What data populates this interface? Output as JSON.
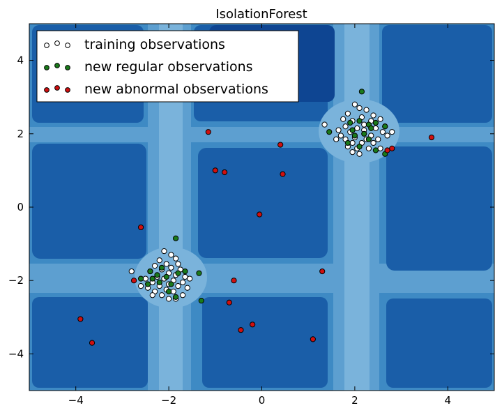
{
  "chart_data": {
    "type": "scatter",
    "title": "IsolationForest",
    "xlabel": "",
    "ylabel": "",
    "xlim": [
      -5,
      5
    ],
    "ylim": [
      -5,
      5
    ],
    "xticks": [
      -4,
      -2,
      0,
      2,
      4
    ],
    "yticks": [
      -4,
      -2,
      0,
      2,
      4
    ],
    "background": "decision-function contour (IsolationForest anomaly score)",
    "contour_colors": [
      "#08306b",
      "#1f5fa8",
      "#3a88c4",
      "#6aaed6"
    ],
    "legend": {
      "placement": "top-left",
      "entries": [
        "training observations",
        "new regular observations",
        "new abnormal observations"
      ]
    },
    "series": [
      {
        "name": "training observations",
        "color": "#ffffff",
        "points": [
          [
            2.0,
            2.8
          ],
          [
            2.1,
            2.7
          ],
          [
            2.25,
            2.65
          ],
          [
            1.85,
            2.55
          ],
          [
            2.4,
            2.5
          ],
          [
            1.75,
            2.4
          ],
          [
            2.55,
            2.4
          ],
          [
            1.95,
            2.35
          ],
          [
            2.15,
            2.45
          ],
          [
            2.35,
            2.35
          ],
          [
            1.8,
            2.2
          ],
          [
            2.65,
            2.2
          ],
          [
            1.65,
            2.1
          ],
          [
            2.05,
            2.15
          ],
          [
            2.2,
            2.1
          ],
          [
            2.45,
            2.15
          ],
          [
            1.9,
            2.05
          ],
          [
            2.6,
            2.05
          ],
          [
            1.7,
            1.95
          ],
          [
            2.35,
            1.95
          ],
          [
            2.0,
            1.9
          ],
          [
            2.8,
            2.05
          ],
          [
            1.8,
            1.85
          ],
          [
            2.25,
            1.85
          ],
          [
            2.5,
            1.85
          ],
          [
            1.95,
            1.75
          ],
          [
            2.15,
            1.75
          ],
          [
            2.4,
            1.75
          ],
          [
            1.85,
            1.65
          ],
          [
            2.05,
            1.6
          ],
          [
            2.3,
            1.6
          ],
          [
            2.55,
            1.6
          ],
          [
            1.95,
            1.5
          ],
          [
            2.1,
            1.45
          ],
          [
            1.35,
            2.25
          ],
          [
            2.7,
            1.95
          ],
          [
            2.2,
            2.25
          ],
          [
            1.6,
            1.85
          ],
          [
            -2.1,
            -1.2
          ],
          [
            -1.95,
            -1.3
          ],
          [
            -1.85,
            -1.4
          ],
          [
            -2.2,
            -1.45
          ],
          [
            -2.05,
            -1.55
          ],
          [
            -1.8,
            -1.55
          ],
          [
            -2.3,
            -1.6
          ],
          [
            -1.95,
            -1.65
          ],
          [
            -2.15,
            -1.7
          ],
          [
            -1.75,
            -1.7
          ],
          [
            -2.4,
            -1.75
          ],
          [
            -2.0,
            -1.8
          ],
          [
            -1.85,
            -1.85
          ],
          [
            -2.25,
            -1.9
          ],
          [
            -1.65,
            -1.9
          ],
          [
            -2.5,
            -1.95
          ],
          [
            -2.1,
            -1.95
          ],
          [
            -1.9,
            -2.0
          ],
          [
            -2.35,
            -2.05
          ],
          [
            -1.7,
            -2.05
          ],
          [
            -2.0,
            -2.1
          ],
          [
            -2.2,
            -2.15
          ],
          [
            -1.8,
            -2.15
          ],
          [
            -2.45,
            -2.2
          ],
          [
            -1.6,
            -2.2
          ],
          [
            -2.05,
            -2.25
          ],
          [
            -2.3,
            -2.3
          ],
          [
            -1.9,
            -2.3
          ],
          [
            -2.15,
            -2.4
          ],
          [
            -1.7,
            -2.4
          ],
          [
            -2.0,
            -2.5
          ],
          [
            -2.8,
            -1.75
          ],
          [
            -2.6,
            -2.15
          ],
          [
            -1.55,
            -1.95
          ],
          [
            -2.35,
            -2.4
          ],
          [
            -1.85,
            -2.5
          ]
        ]
      },
      {
        "name": "new regular observations",
        "color": "#1a7a1a",
        "points": [
          [
            2.15,
            3.15
          ],
          [
            1.9,
            2.3
          ],
          [
            2.1,
            2.35
          ],
          [
            2.3,
            2.25
          ],
          [
            2.45,
            2.3
          ],
          [
            1.95,
            2.1
          ],
          [
            2.2,
            2.0
          ],
          [
            2.35,
            2.15
          ],
          [
            1.45,
            2.05
          ],
          [
            2.65,
            2.2
          ],
          [
            2.0,
            1.95
          ],
          [
            2.3,
            1.85
          ],
          [
            1.85,
            1.75
          ],
          [
            2.45,
            1.55
          ],
          [
            2.65,
            1.45
          ],
          [
            2.1,
            1.65
          ],
          [
            -1.85,
            -0.85
          ],
          [
            -2.15,
            -1.65
          ],
          [
            -2.4,
            -1.75
          ],
          [
            -2.25,
            -1.85
          ],
          [
            -2.05,
            -1.9
          ],
          [
            -1.8,
            -1.8
          ],
          [
            -2.35,
            -1.95
          ],
          [
            -1.65,
            -1.75
          ],
          [
            -2.2,
            -2.05
          ],
          [
            -1.95,
            -2.1
          ],
          [
            -2.6,
            -1.95
          ],
          [
            -2.45,
            -2.1
          ],
          [
            -2.0,
            -2.3
          ],
          [
            -1.85,
            -2.45
          ],
          [
            -1.35,
            -1.8
          ],
          [
            -1.3,
            -2.55
          ]
        ]
      },
      {
        "name": "new abnormal observations",
        "color": "#d01010",
        "points": [
          [
            -1.15,
            2.05
          ],
          [
            -1.0,
            1.0
          ],
          [
            -0.8,
            0.95
          ],
          [
            0.4,
            1.7
          ],
          [
            0.45,
            0.9
          ],
          [
            -0.05,
            -0.2
          ],
          [
            -2.6,
            -0.55
          ],
          [
            1.3,
            -1.75
          ],
          [
            -0.6,
            -2.0
          ],
          [
            -2.75,
            -2.0
          ],
          [
            -0.7,
            -2.6
          ],
          [
            -3.9,
            -3.05
          ],
          [
            -3.65,
            -3.7
          ],
          [
            -0.2,
            -3.2
          ],
          [
            -0.45,
            -3.35
          ],
          [
            1.1,
            -3.6
          ],
          [
            2.7,
            1.55
          ],
          [
            2.8,
            1.6
          ],
          [
            3.65,
            1.9
          ]
        ]
      }
    ]
  }
}
